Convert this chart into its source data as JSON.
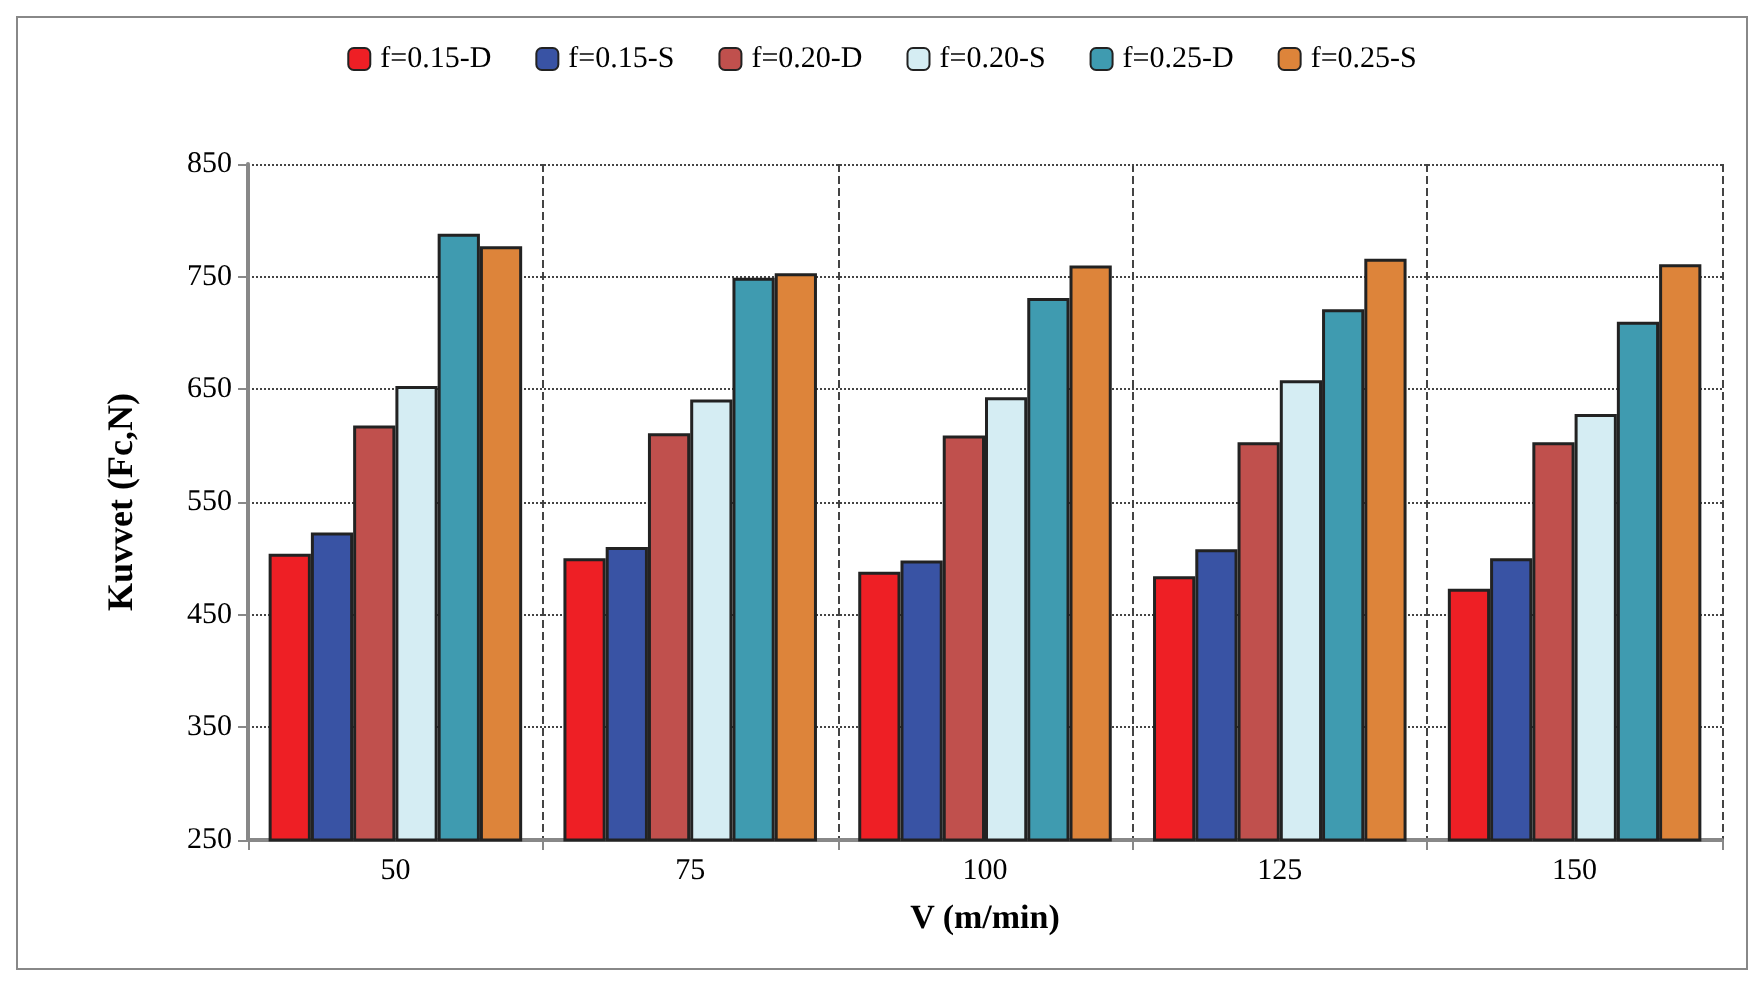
{
  "chart_data": {
    "type": "bar",
    "xlabel": "V (m/min)",
    "ylabel": "Kuvvet (Fc,N)",
    "categories": [
      "50",
      "75",
      "100",
      "125",
      "150"
    ],
    "series": [
      {
        "name": "f=0.15-D",
        "color": "#ee1f25",
        "values": [
          504,
          500,
          488,
          484,
          473
        ]
      },
      {
        "name": "f=0.15-S",
        "color": "#3953a4",
        "values": [
          523,
          510,
          498,
          508,
          500
        ]
      },
      {
        "name": "f=0.20-D",
        "color": "#c0504d",
        "values": [
          618,
          611,
          609,
          603,
          603
        ]
      },
      {
        "name": "f=0.20-S",
        "color": "#d5edf3",
        "values": [
          653,
          641,
          643,
          658,
          628
        ]
      },
      {
        "name": "f=0.25-D",
        "color": "#3f9bb0",
        "values": [
          788,
          749,
          731,
          721,
          710
        ]
      },
      {
        "name": "f=0.25-S",
        "color": "#dd843a",
        "values": [
          777,
          753,
          760,
          766,
          761
        ]
      }
    ],
    "ylim": [
      250,
      850
    ],
    "yticks": [
      250,
      350,
      450,
      550,
      650,
      750,
      850
    ],
    "grid": true,
    "legend": "top"
  }
}
